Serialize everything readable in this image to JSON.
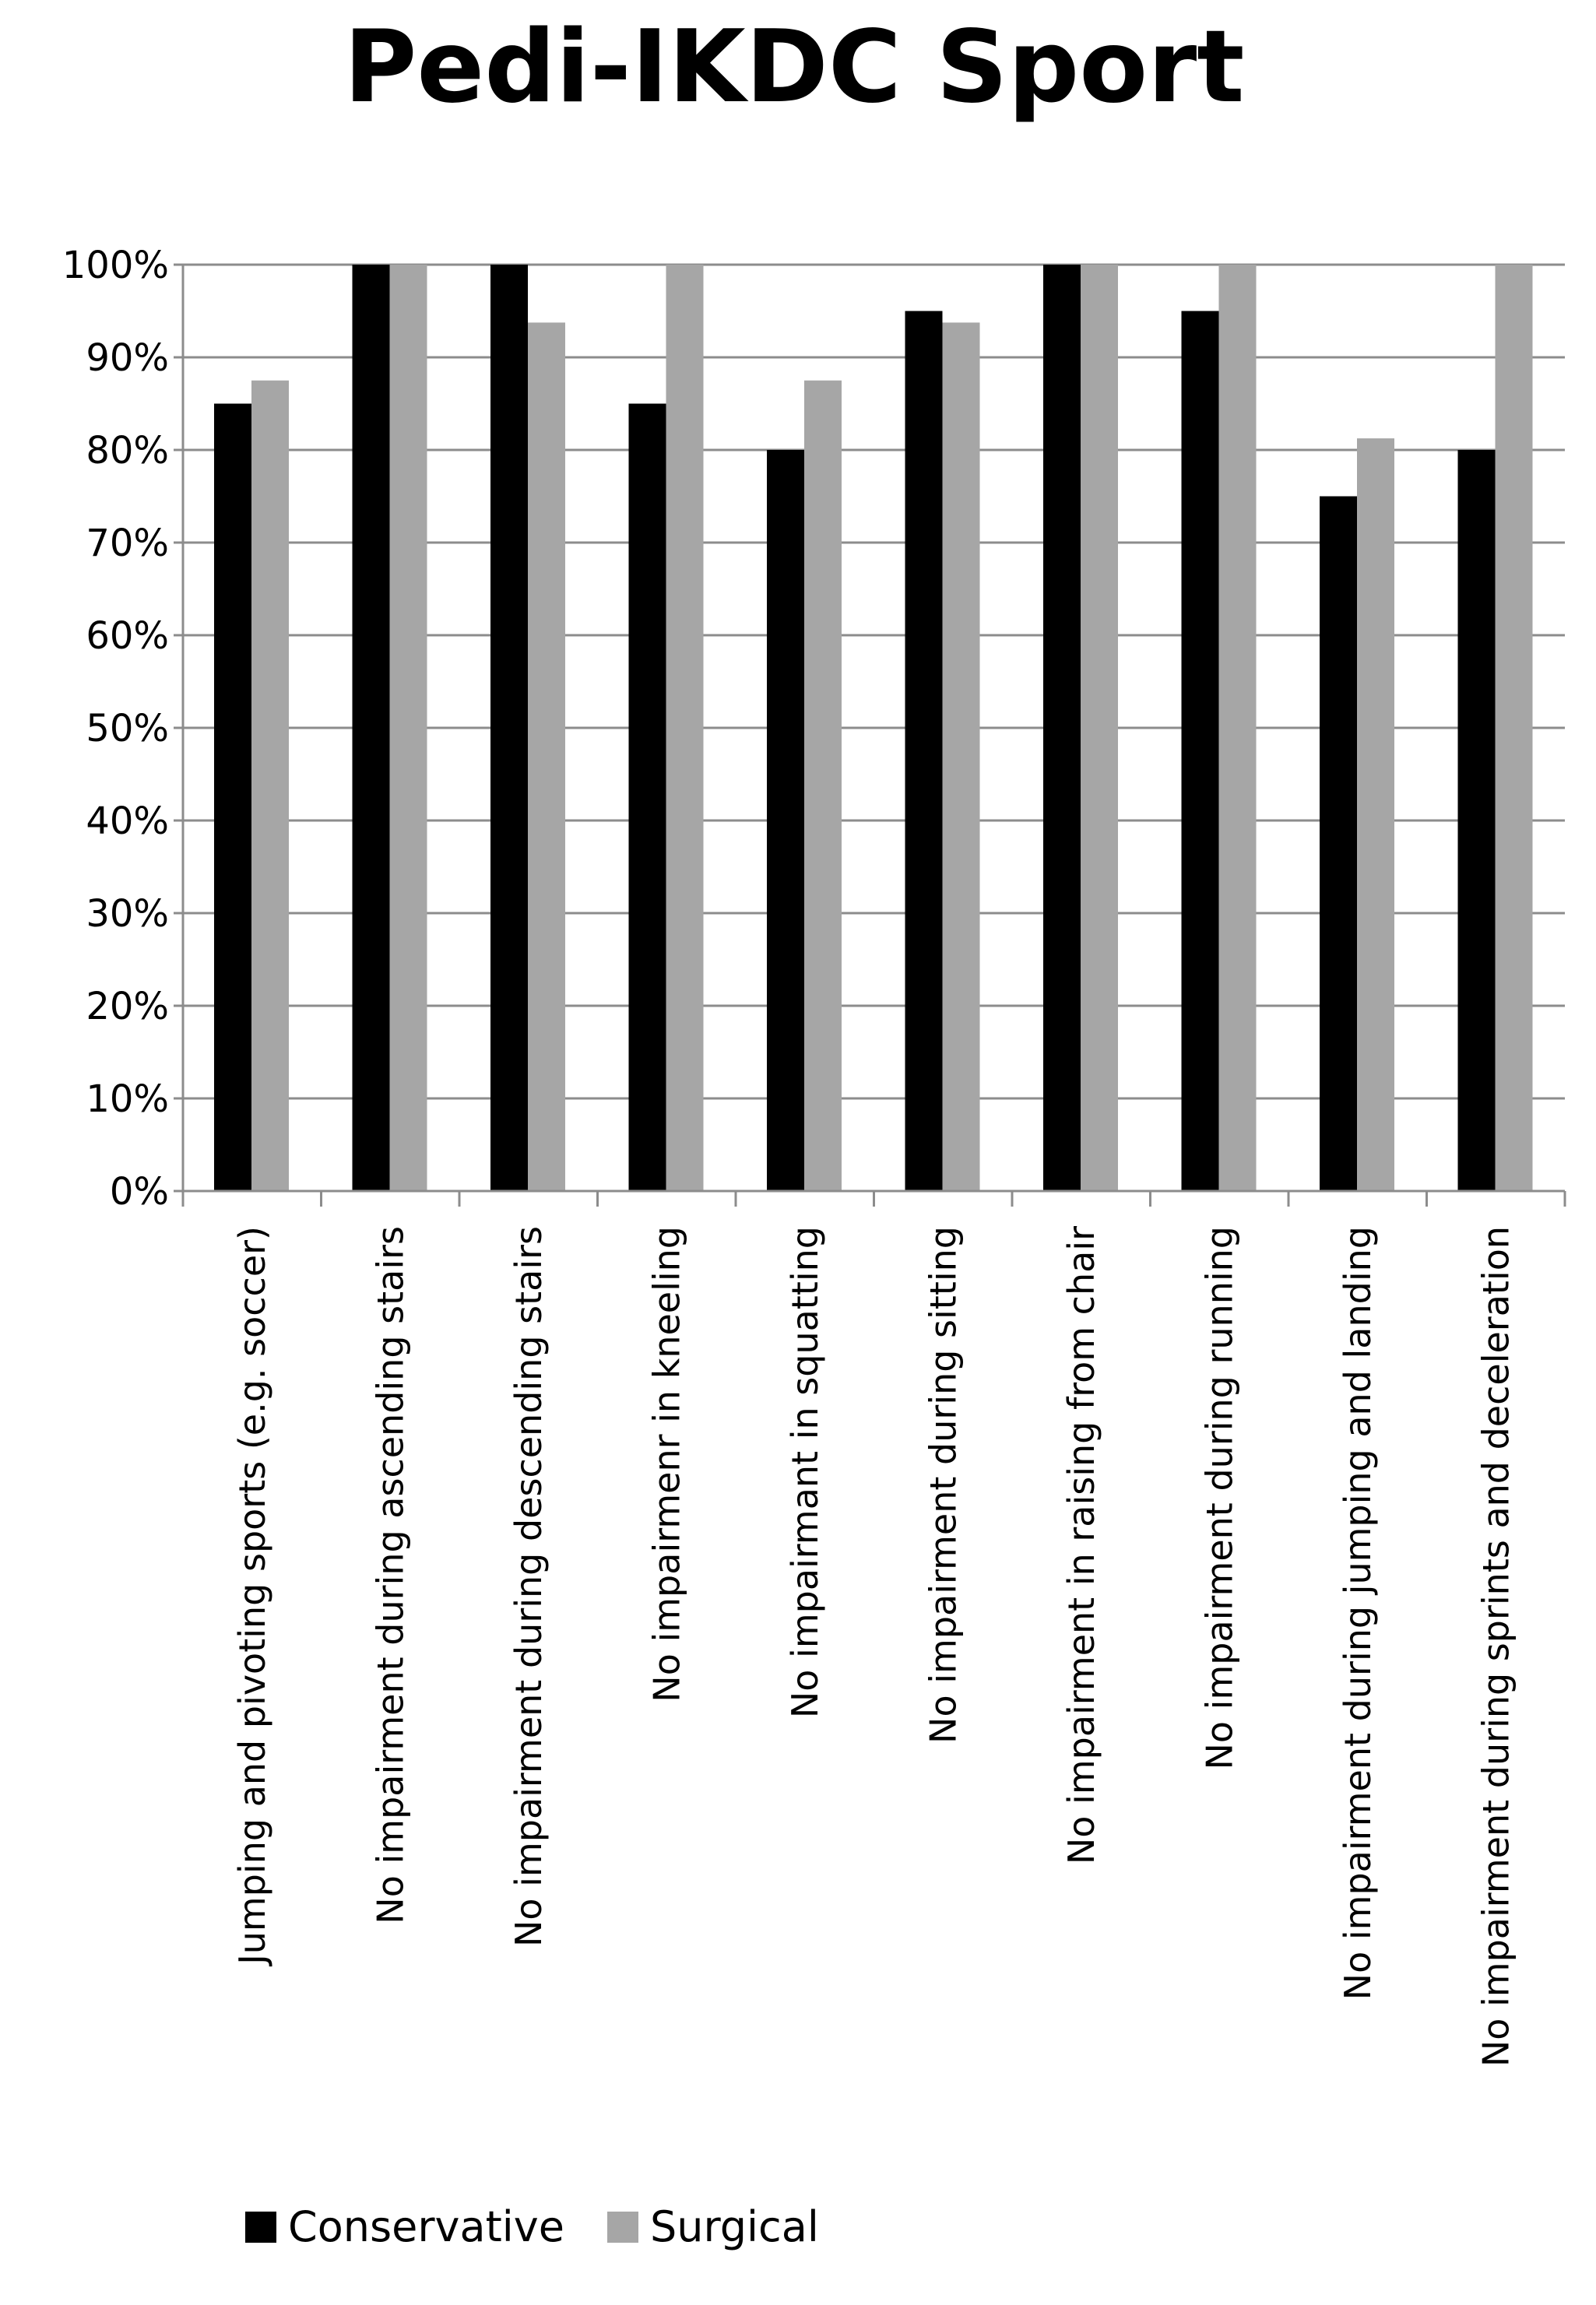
{
  "chart_data": {
    "type": "bar",
    "title": "Pedi-IKDC Sport",
    "xlabel": "",
    "ylabel": "",
    "ylim": [
      0,
      100
    ],
    "y_ticks": [
      0,
      10,
      20,
      30,
      40,
      50,
      60,
      70,
      80,
      90,
      100
    ],
    "y_tick_labels": [
      "0%",
      "10%",
      "20%",
      "30%",
      "40%",
      "50%",
      "60%",
      "70%",
      "80%",
      "90%",
      "100%"
    ],
    "grid": true,
    "legend_position": "bottom-left",
    "categories": [
      "Jumping and pivoting sports (e.g. soccer)",
      "No impairment during ascending stairs",
      "No impairment during descending stairs",
      "No impairmenr in kneeling",
      "No impairmant in squatting",
      "No impairment during sitting",
      "No impairment in raising from chair",
      "No impairment during running",
      "No impairment during jumping and landing",
      "No impairment during sprints and deceleration"
    ],
    "series": [
      {
        "name": "Conservative",
        "color": "#000000",
        "values": [
          85,
          100,
          100,
          85,
          80,
          95,
          100,
          95,
          75,
          80
        ]
      },
      {
        "name": "Surgical",
        "color": "#a6a6a6",
        "values": [
          87.5,
          100,
          93.75,
          100,
          87.5,
          93.75,
          100,
          100,
          81.25,
          100
        ]
      }
    ]
  }
}
